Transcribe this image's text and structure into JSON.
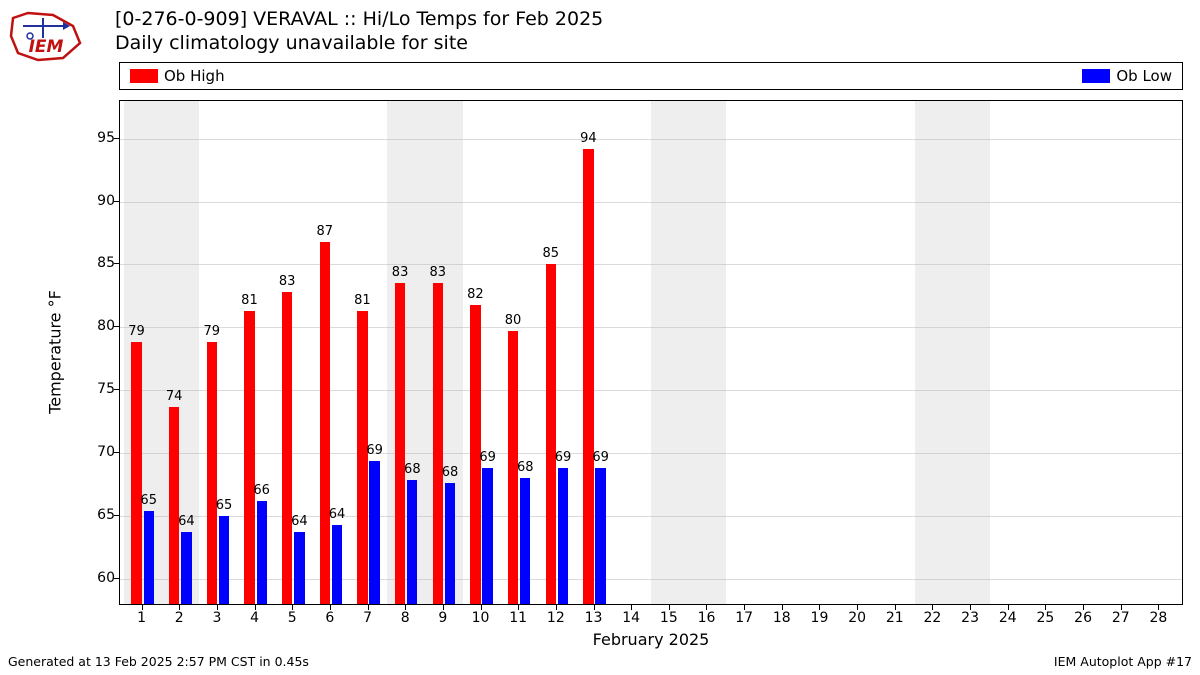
{
  "title_line1": "[0-276-0-909] VERAVAL :: Hi/Lo Temps for Feb 2025",
  "title_line2": "Daily climatology unavailable for site",
  "legend": {
    "high": {
      "label": "Ob High",
      "color": "#ff0000"
    },
    "low": {
      "label": "Ob Low",
      "color": "#0000ff"
    }
  },
  "chart": {
    "type": "bar",
    "ylabel": "Temperature °F",
    "xlabel": "February 2025",
    "ylim": [
      58,
      98
    ],
    "yticks": [
      60,
      65,
      70,
      75,
      80,
      85,
      90,
      95
    ],
    "days": [
      1,
      2,
      3,
      4,
      5,
      6,
      7,
      8,
      9,
      10,
      11,
      12,
      13,
      14,
      15,
      16,
      17,
      18,
      19,
      20,
      21,
      22,
      23,
      24,
      25,
      26,
      27,
      28
    ],
    "xlim": [
      0.4,
      28.6
    ],
    "weekend_bands": [
      [
        0.5,
        2.5
      ],
      [
        7.5,
        9.5
      ],
      [
        14.5,
        16.5
      ],
      [
        21.5,
        23.5
      ]
    ],
    "bar_halfwidth": 0.3,
    "gap": 0.025,
    "grid_color": "#b0b0b0",
    "background": "#ffffff",
    "weekend_color": "#eeeeee",
    "series": {
      "high": {
        "color": "#ff0000",
        "label_values": [
          79,
          74,
          79,
          81,
          83,
          87,
          81,
          83,
          83,
          82,
          80,
          85,
          94
        ],
        "bar_top_values": [
          78.8,
          73.7,
          78.8,
          81.3,
          82.8,
          86.8,
          81.3,
          83.5,
          83.5,
          81.8,
          79.7,
          85.0,
          94.2
        ]
      },
      "low": {
        "color": "#0000ff",
        "label_values": [
          65,
          64,
          65,
          66,
          64,
          64,
          69,
          68,
          68,
          69,
          68,
          69,
          69
        ],
        "bar_top_values": [
          65.4,
          63.7,
          65.0,
          66.2,
          63.7,
          64.3,
          69.4,
          67.9,
          67.6,
          68.8,
          68.0,
          68.8,
          68.8
        ]
      }
    },
    "label_fontsize": 13,
    "tick_fontsize": 14
  },
  "footer_left": "Generated at 13 Feb 2025 2:57 PM CST in 0.45s",
  "footer_right": "IEM Autoplot App #17"
}
